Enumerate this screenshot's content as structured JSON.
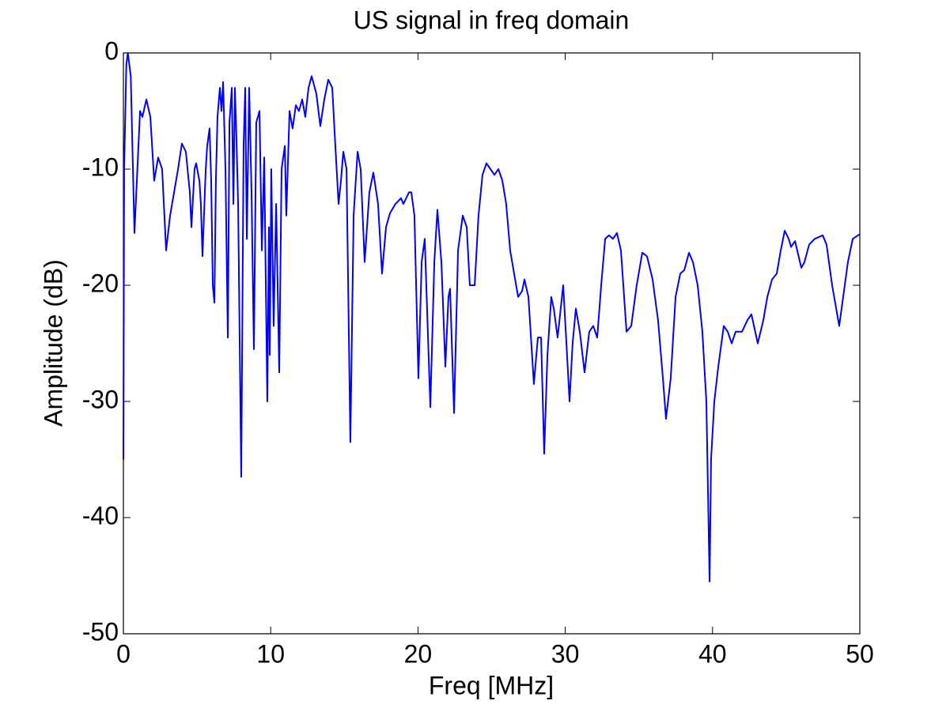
{
  "chart_data": {
    "type": "line",
    "title": "US signal in freq domain",
    "x_label": "Freq [MHz]",
    "y_label": "Amplitude (dB)",
    "xlim": [
      0,
      50
    ],
    "ylim": [
      -50,
      0
    ],
    "xticks": [
      0,
      10,
      20,
      30,
      40,
      50
    ],
    "yticks": [
      -50,
      -40,
      -30,
      -20,
      -10,
      0
    ],
    "grid": false,
    "color": "#0000ff",
    "x": [
      0,
      0.05,
      0.2,
      0.3,
      0.5,
      0.75,
      1.13,
      1.29,
      1.56,
      1.83,
      2.09,
      2.36,
      2.63,
      2.9,
      3.17,
      3.44,
      3.71,
      3.97,
      4.24,
      4.51,
      4.62,
      4.83,
      4.94,
      5.16,
      5.26,
      5.37,
      5.59,
      5.69,
      5.85,
      5.96,
      6.07,
      6.18,
      6.28,
      6.39,
      6.55,
      6.66,
      6.77,
      6.93,
      7.09,
      7.2,
      7.36,
      7.47,
      7.57,
      7.68,
      7.79,
      8.0,
      8.16,
      8.27,
      8.38,
      8.54,
      8.7,
      8.86,
      9.02,
      9.24,
      9.4,
      9.56,
      9.77,
      9.88,
      9.94,
      10.04,
      10.2,
      10.37,
      10.58,
      10.74,
      10.96,
      11.06,
      11.28,
      11.49,
      11.71,
      11.92,
      12.14,
      12.35,
      12.57,
      12.78,
      13.1,
      13.37,
      13.64,
      13.91,
      14.18,
      14.39,
      14.61,
      14.77,
      14.93,
      15.15,
      15.41,
      15.63,
      15.9,
      16.11,
      16.38,
      16.7,
      16.97,
      17.29,
      17.56,
      17.83,
      18.1,
      18.47,
      18.85,
      19.01,
      19.39,
      19.55,
      19.76,
      20.03,
      20.25,
      20.46,
      20.84,
      21.11,
      21.32,
      21.59,
      21.86,
      22.07,
      22.18,
      22.45,
      22.72,
      23.04,
      23.31,
      23.52,
      23.85,
      24.11,
      24.38,
      24.65,
      24.92,
      25.19,
      25.46,
      25.73,
      25.99,
      26.26,
      26.53,
      26.8,
      27.07,
      27.23,
      27.5,
      27.87,
      28.14,
      28.36,
      28.57,
      28.79,
      29.05,
      29.22,
      29.48,
      29.86,
      30.08,
      30.29,
      30.5,
      30.72,
      30.99,
      31.31,
      31.63,
      31.9,
      32.17,
      32.44,
      32.71,
      32.97,
      33.24,
      33.51,
      33.78,
      34.16,
      34.48,
      34.85,
      35.23,
      35.55,
      35.93,
      36.3,
      36.63,
      36.84,
      37.16,
      37.49,
      37.81,
      38.08,
      38.4,
      38.67,
      38.99,
      39.31,
      39.58,
      39.8,
      39.9,
      40.12,
      40.39,
      40.76,
      41.03,
      41.3,
      41.57,
      42.0,
      42.37,
      42.64,
      43.07,
      43.45,
      43.72,
      44.04,
      44.36,
      44.63,
      44.9,
      45.17,
      45.33,
      45.6,
      46.03,
      46.24,
      46.56,
      46.94,
      47.48,
      47.74,
      48.12,
      48.6,
      48.87,
      49.19,
      49.52,
      50
    ],
    "values": [
      -35,
      -10,
      -1,
      0,
      -2,
      -15.5,
      -5,
      -5.5,
      -4,
      -5.5,
      -11,
      -9,
      -10,
      -17,
      -14,
      -12,
      -10,
      -7.8,
      -8.5,
      -12,
      -15,
      -10,
      -9.5,
      -11,
      -13,
      -17.5,
      -10,
      -8,
      -6.5,
      -11,
      -20,
      -21.5,
      -11,
      -5.5,
      -3,
      -5,
      -2.5,
      -10,
      -24.5,
      -6,
      -3,
      -13,
      -3,
      -7.5,
      -13,
      -36.5,
      -8,
      -3,
      -16,
      -3,
      -12,
      -25.5,
      -6,
      -5,
      -17,
      -9,
      -30,
      -15,
      -26,
      -10,
      -23.5,
      -13,
      -27.5,
      -10,
      -8,
      -14,
      -5,
      -6.5,
      -4.5,
      -5,
      -4,
      -5.5,
      -3,
      -2,
      -3.5,
      -6.3,
      -4,
      -2.3,
      -3,
      -8,
      -13,
      -11,
      -8.5,
      -10,
      -33.5,
      -14,
      -8.5,
      -10,
      -18,
      -12,
      -10.3,
      -13,
      -19,
      -15,
      -13.8,
      -13,
      -12.5,
      -13,
      -12,
      -12,
      -14,
      -28,
      -18,
      -16,
      -30.5,
      -18,
      -13.5,
      -18,
      -27,
      -21,
      -20.3,
      -31,
      -17,
      -14,
      -15,
      -20,
      -20,
      -14,
      -10.5,
      -9.5,
      -10,
      -10.5,
      -10,
      -11,
      -13,
      -17,
      -19,
      -21,
      -20.5,
      -19.5,
      -21,
      -28.5,
      -24.5,
      -24.5,
      -34.5,
      -26,
      -21,
      -22,
      -24.5,
      -20,
      -25,
      -30,
      -25,
      -22,
      -24,
      -27.5,
      -24,
      -23.5,
      -24.5,
      -20,
      -16,
      -15.7,
      -16,
      -15.5,
      -17,
      -24,
      -23.5,
      -20,
      -17.2,
      -17.5,
      -19.5,
      -23,
      -28,
      -31.5,
      -28,
      -21,
      -19,
      -18.7,
      -17.2,
      -18,
      -20,
      -24,
      -30,
      -45.5,
      -35,
      -30,
      -27,
      -23.5,
      -24,
      -25,
      -24,
      -24,
      -23,
      -22.5,
      -25,
      -23,
      -21,
      -19.5,
      -19,
      -17,
      -15.3,
      -16,
      -16.7,
      -16.2,
      -18.5,
      -18,
      -16.5,
      -16,
      -15.7,
      -16.5,
      -20,
      -23.5,
      -21,
      -18,
      -16,
      -15.6
    ]
  }
}
